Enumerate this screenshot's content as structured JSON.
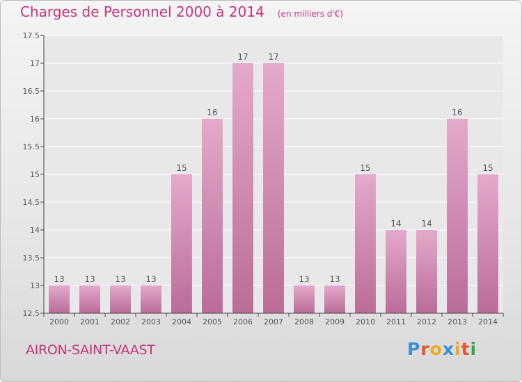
{
  "header": {
    "title": "Charges de Personnel 2000 à 2014",
    "subtitle": "(en milliers d'€)"
  },
  "footer": {
    "town": "AIRON-SAINT-VAAST",
    "logo_letters": [
      "P",
      "r",
      "o",
      "x",
      "i",
      "t",
      "i"
    ],
    "logo_colors": [
      "#3d8fd6",
      "#e8552a",
      "#f2a81d",
      "#3d8fd6",
      "#f2a81d",
      "#e8552a",
      "#2ea84f"
    ]
  },
  "colors": {
    "bar_light": "#e4a9cb",
    "bar_dark": "#b96c97",
    "accent": "#c4347d",
    "axis": "#444444",
    "grid": "#ffffff"
  },
  "chart_data": {
    "type": "bar",
    "title": "Charges de Personnel 2000 à 2014",
    "subtitle": "(en milliers d'€)",
    "categories": [
      "2000",
      "2001",
      "2002",
      "2003",
      "2004",
      "2005",
      "2006",
      "2007",
      "2008",
      "2009",
      "2010",
      "2011",
      "2012",
      "2013",
      "2014"
    ],
    "values": [
      13,
      13,
      13,
      13,
      15,
      16,
      17,
      17,
      13,
      13,
      15,
      14,
      14,
      16,
      15
    ],
    "data_labels": [
      "13",
      "13",
      "13",
      "13",
      "15",
      "16",
      "17",
      "17",
      "13",
      "13",
      "15",
      "14",
      "14",
      "16",
      "15"
    ],
    "ylim": [
      12.5,
      17.5
    ],
    "yticks": [
      12.5,
      13,
      13.5,
      14,
      14.5,
      15,
      15.5,
      16,
      16.5,
      17,
      17.5
    ],
    "ytick_labels": [
      "12.5",
      "13",
      "13.5",
      "14",
      "14.5",
      "15",
      "15.5",
      "16",
      "16.5",
      "17",
      "17.5"
    ],
    "xlabel": "",
    "ylabel": "",
    "grid": true
  }
}
